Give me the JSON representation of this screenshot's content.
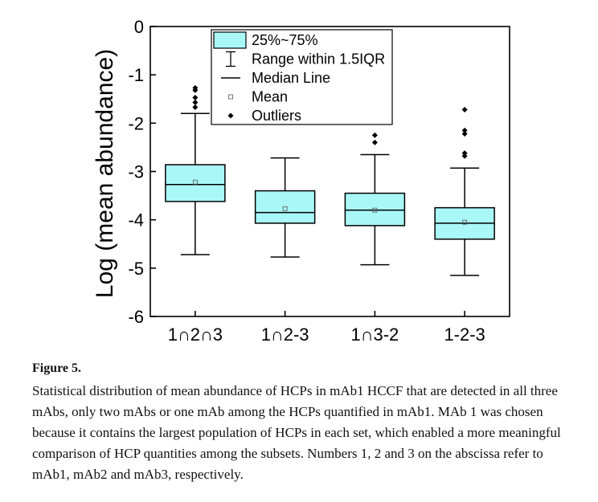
{
  "figure_label": "Figure 5.",
  "caption_text": "Statistical distribution of mean abundance of HCPs in mAb1 HCCF that are detected in all three mAbs, only two mAbs or one mAb among the HCPs quantified in mAb1. MAb 1 was chosen because it contains the largest population of HCPs in each set, which enabled a more meaningful comparison of HCP quantities among the subsets. Numbers 1, 2 and 3 on the abscissa refer to mAb1, mAb2 and mAb3, respectively.",
  "colors": {
    "box_fill": "#aaf7f7",
    "box_stroke": "#000000"
  },
  "chart_data": {
    "type": "box",
    "title": "",
    "xlabel": "",
    "ylabel": "Log (mean abundance)",
    "ylim": [
      -6,
      0
    ],
    "yticks": [
      0,
      -1,
      -2,
      -3,
      -4,
      -5,
      -6
    ],
    "grid": false,
    "legend_position": "top-center",
    "legend": [
      {
        "symbol": "box",
        "label": "25%~75%"
      },
      {
        "symbol": "whisker",
        "label": "Range within 1.5IQR"
      },
      {
        "symbol": "median",
        "label": "Median Line"
      },
      {
        "symbol": "mean",
        "label": "Mean"
      },
      {
        "symbol": "outlier",
        "label": "Outliers"
      }
    ],
    "categories": [
      "1∩2∩3",
      "1∩2-3",
      "1∩3-2",
      "1-2-3"
    ],
    "boxes": [
      {
        "category": "1∩2∩3",
        "whisker_low": -4.72,
        "q1": -3.62,
        "median": -3.27,
        "q3": -2.86,
        "whisker_high": -1.8,
        "mean": -3.22,
        "outliers": [
          -1.27,
          -1.32,
          -1.47,
          -1.57,
          -1.67
        ]
      },
      {
        "category": "1∩2-3",
        "whisker_low": -4.77,
        "q1": -4.07,
        "median": -3.85,
        "q3": -3.4,
        "whisker_high": -2.72,
        "mean": -3.77,
        "outliers": []
      },
      {
        "category": "1∩3-2",
        "whisker_low": -4.93,
        "q1": -4.12,
        "median": -3.8,
        "q3": -3.45,
        "whisker_high": -2.65,
        "mean": -3.8,
        "outliers": [
          -2.25,
          -2.4
        ]
      },
      {
        "category": "1-2-3",
        "whisker_low": -5.15,
        "q1": -4.4,
        "median": -4.07,
        "q3": -3.75,
        "whisker_high": -2.93,
        "mean": -4.05,
        "outliers": [
          -1.72,
          -2.15,
          -2.22,
          -2.62,
          -2.68
        ]
      }
    ]
  }
}
